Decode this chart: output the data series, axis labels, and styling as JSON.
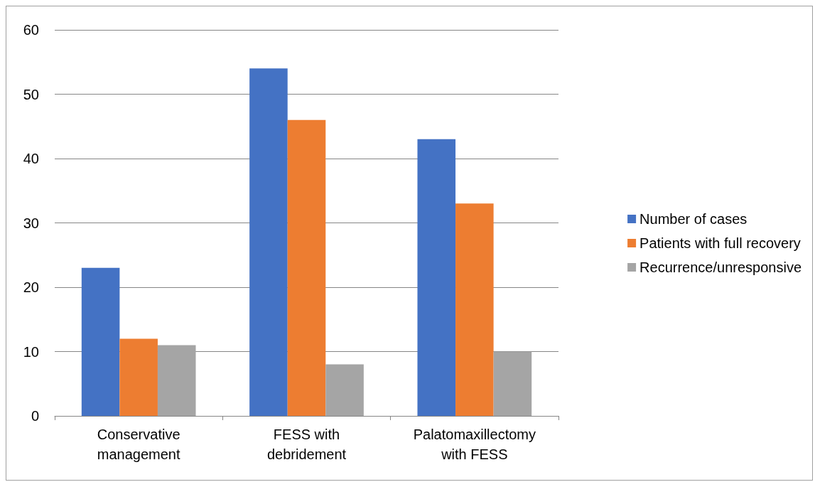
{
  "chart_data": {
    "type": "bar",
    "categories": [
      "Conservative\nmanagement",
      "FESS with\ndebridement",
      "Palatomaxillectomy\nwith FESS"
    ],
    "series": [
      {
        "name": "Number of cases",
        "color": "#4472c4",
        "values": [
          23,
          54,
          43
        ]
      },
      {
        "name": "Patients with full recovery",
        "color": "#ed7d31",
        "values": [
          12,
          46,
          33
        ]
      },
      {
        "name": "Recurrence/unresponsive",
        "color": "#a5a5a5",
        "values": [
          11,
          8,
          10
        ]
      }
    ],
    "ylim": [
      0,
      60
    ],
    "yticks": [
      0,
      10,
      20,
      30,
      40,
      50,
      60
    ],
    "grid": "y",
    "legend": "right"
  }
}
